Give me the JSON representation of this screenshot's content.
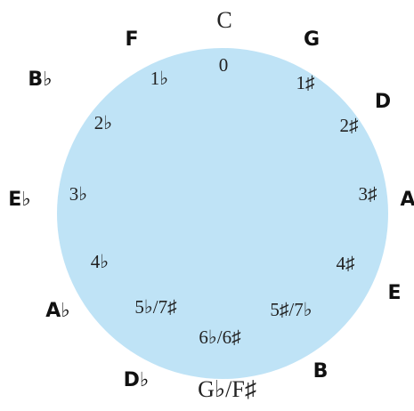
{
  "keys": [
    "C",
    "G",
    "D",
    "A",
    "E",
    "B",
    "G♭/F♯",
    "D♭",
    "A♭",
    "E♭",
    "B♭",
    "F"
  ],
  "accidentals": [
    "0",
    "1♯",
    "2♯",
    "3♯",
    "4♯",
    "5♯/7♭",
    "6♭/6♯",
    "5♭/7♯",
    "4♭",
    "3♭",
    "2♭",
    "1♭"
  ]
}
